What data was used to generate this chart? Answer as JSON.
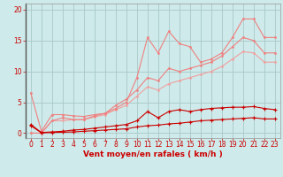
{
  "background_color": "#ceeaea",
  "grid_color": "#aac8c8",
  "xlabel": "Vent moyen/en rafales ( km/h )",
  "xlim": [
    -0.5,
    23.5
  ],
  "ylim": [
    -0.8,
    21
  ],
  "yticks": [
    0,
    5,
    10,
    15,
    20
  ],
  "xticks": [
    0,
    1,
    2,
    3,
    4,
    5,
    6,
    7,
    8,
    9,
    10,
    11,
    12,
    13,
    14,
    15,
    16,
    17,
    18,
    19,
    20,
    21,
    22,
    23
  ],
  "line1_x": [
    0,
    1,
    2,
    3,
    4,
    5,
    6,
    7,
    8,
    9,
    10,
    11,
    12,
    13,
    14,
    15,
    16,
    17,
    18,
    19,
    20,
    21,
    22,
    23
  ],
  "line1_y": [
    1.2,
    0.05,
    0.1,
    0.15,
    0.2,
    0.3,
    0.4,
    0.5,
    0.6,
    0.7,
    1.0,
    1.2,
    1.3,
    1.5,
    1.6,
    1.8,
    2.0,
    2.1,
    2.2,
    2.3,
    2.4,
    2.5,
    2.3,
    2.3
  ],
  "line1_color": "#cc0000",
  "line1_lw": 0.8,
  "line2_x": [
    0,
    1,
    2,
    3,
    4,
    5,
    6,
    7,
    8,
    9,
    10,
    11,
    12,
    13,
    14,
    15,
    16,
    17,
    18,
    19,
    20,
    21,
    22,
    23
  ],
  "line2_y": [
    1.4,
    0.1,
    0.2,
    0.3,
    0.5,
    0.6,
    0.8,
    1.0,
    1.2,
    1.4,
    2.0,
    3.5,
    2.5,
    3.5,
    3.8,
    3.5,
    3.8,
    4.0,
    4.1,
    4.2,
    4.2,
    4.3,
    4.0,
    3.8
  ],
  "line2_color": "#cc0000",
  "line2_lw": 0.8,
  "line3_x": [
    0,
    1,
    2,
    3,
    4,
    5,
    6,
    7,
    8,
    9,
    10,
    11,
    12,
    13,
    14,
    15,
    16,
    17,
    18,
    19,
    20,
    21,
    22,
    23
  ],
  "line3_y": [
    6.5,
    0.3,
    3.0,
    3.0,
    2.8,
    2.7,
    3.0,
    3.2,
    4.0,
    5.0,
    9.0,
    15.5,
    13.0,
    16.5,
    14.5,
    14.0,
    11.5,
    12.0,
    13.0,
    15.5,
    18.5,
    18.5,
    15.5,
    15.5
  ],
  "line3_color": "#f08080",
  "line3_lw": 0.8,
  "line4_x": [
    0,
    1,
    2,
    3,
    4,
    5,
    6,
    7,
    8,
    9,
    10,
    11,
    12,
    13,
    14,
    15,
    16,
    17,
    18,
    19,
    20,
    21,
    22,
    23
  ],
  "line4_y": [
    0.0,
    0.0,
    2.0,
    2.5,
    2.2,
    2.2,
    2.8,
    3.2,
    4.5,
    5.5,
    7.0,
    9.0,
    8.5,
    10.5,
    10.0,
    10.5,
    11.0,
    11.5,
    12.5,
    14.0,
    15.5,
    15.0,
    13.0,
    13.0
  ],
  "line4_color": "#f08080",
  "line4_lw": 0.8,
  "line5_x": [
    0,
    1,
    2,
    3,
    4,
    5,
    6,
    7,
    8,
    9,
    10,
    11,
    12,
    13,
    14,
    15,
    16,
    17,
    18,
    19,
    20,
    21,
    22,
    23
  ],
  "line5_y": [
    0.0,
    0.0,
    2.0,
    2.0,
    2.2,
    2.2,
    2.6,
    3.0,
    3.8,
    4.5,
    6.0,
    7.5,
    7.0,
    8.0,
    8.5,
    9.0,
    9.5,
    10.0,
    10.8,
    12.0,
    13.2,
    13.0,
    11.5,
    11.5
  ],
  "line5_color": "#f0a0a0",
  "line5_lw": 0.8,
  "xlabel_color": "#cc0000",
  "tick_color": "#cc0000",
  "tick_fontsize": 5.5,
  "xlabel_fontsize": 6.5
}
